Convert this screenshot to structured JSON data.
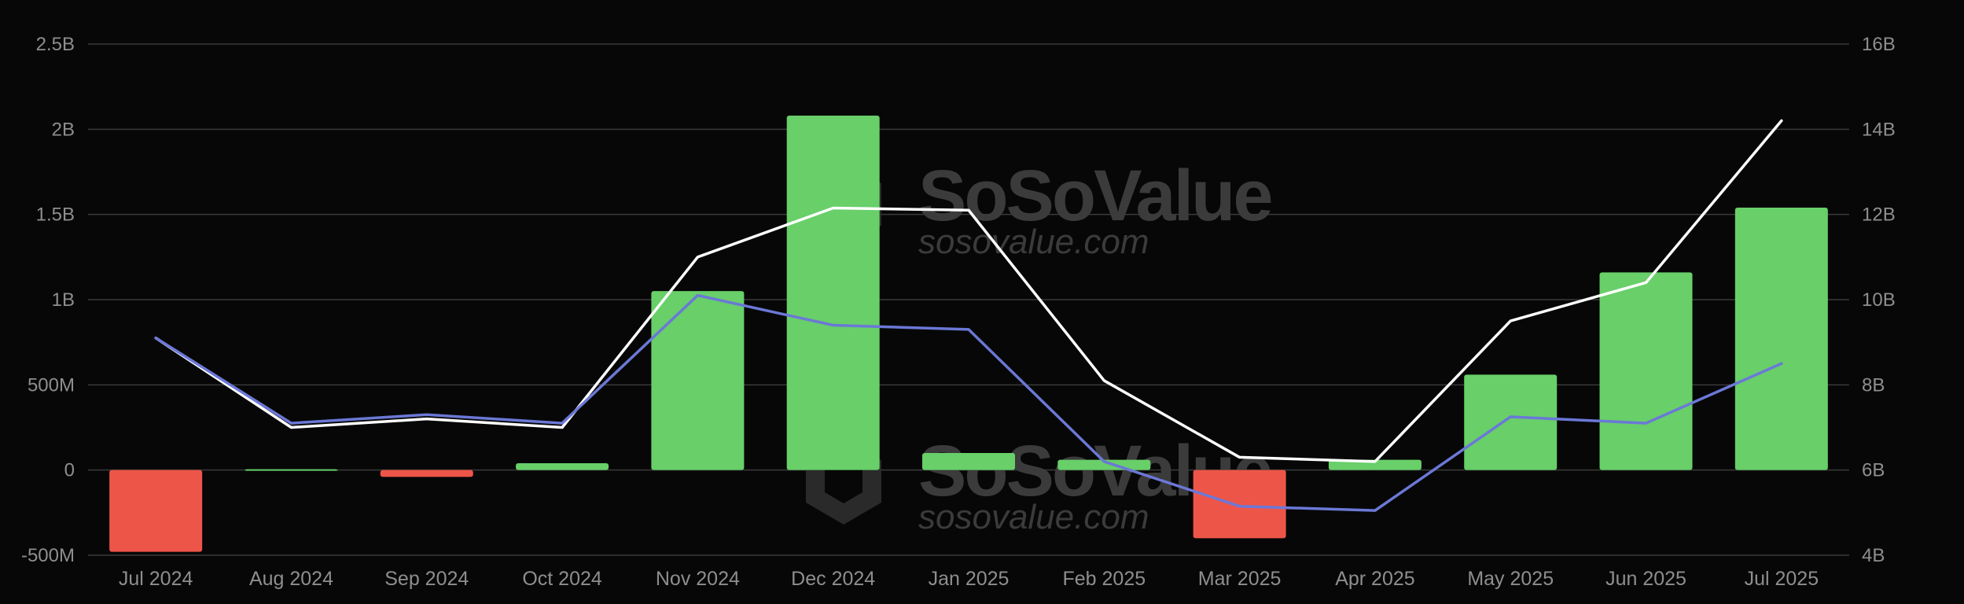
{
  "watermark": {
    "brand": "SoSoValue",
    "site": "sosovalue.com"
  },
  "colors": {
    "background": "#070707",
    "positive_bar": "#68cf69",
    "negative_bar": "#ee5549",
    "white_line": "#ffffff",
    "blue_line": "#6b78d6",
    "grid": "#3a3a3a",
    "text": "#8e8e8e"
  },
  "chart_data": {
    "type": "bar",
    "title": "",
    "xlabel": "",
    "ylabel": "",
    "legend": "none",
    "grid": true,
    "categories": [
      "Jul 2024",
      "Aug 2024",
      "Sep 2024",
      "Oct 2024",
      "Nov 2024",
      "Dec 2024",
      "Jan 2025",
      "Feb 2025",
      "Mar 2025",
      "Apr 2025",
      "May 2025",
      "Jun 2025",
      "Jul 2025"
    ],
    "left_axis": {
      "ylim": [
        -500000000,
        2500000000
      ],
      "ticks": [
        -500000000,
        0,
        500000000,
        1000000000,
        1500000000,
        2000000000,
        2500000000
      ],
      "tick_labels": [
        "-500M",
        "0",
        "500M",
        "1B",
        "1.5B",
        "2B",
        "2.5B"
      ]
    },
    "right_axis": {
      "ylim": [
        4000000000,
        16000000000
      ],
      "ticks": [
        4000000000,
        6000000000,
        8000000000,
        10000000000,
        12000000000,
        14000000000,
        16000000000
      ],
      "tick_labels": [
        "4B",
        "6B",
        "8B",
        "10B",
        "12B",
        "14B",
        "16B"
      ]
    },
    "series": [
      {
        "type": "bar",
        "axis": "left",
        "values": [
          -480000000,
          6000000,
          -40000000,
          40000000,
          1050000000,
          2080000000,
          100000000,
          60000000,
          -400000000,
          60000000,
          560000000,
          1160000000,
          1540000000
        ]
      },
      {
        "type": "line",
        "axis": "right",
        "color": "#ffffff",
        "values": [
          9100000000,
          7000000000,
          7200000000,
          7000000000,
          11000000000,
          12150000000,
          12100000000,
          8100000000,
          6300000000,
          6200000000,
          9500000000,
          10400000000,
          14200000000
        ]
      },
      {
        "type": "line",
        "axis": "right",
        "color": "#6b78d6",
        "values": [
          9100000000,
          7100000000,
          7300000000,
          7100000000,
          10100000000,
          9400000000,
          9300000000,
          6200000000,
          5150000000,
          5050000000,
          7250000000,
          7100000000,
          8500000000
        ]
      }
    ]
  }
}
